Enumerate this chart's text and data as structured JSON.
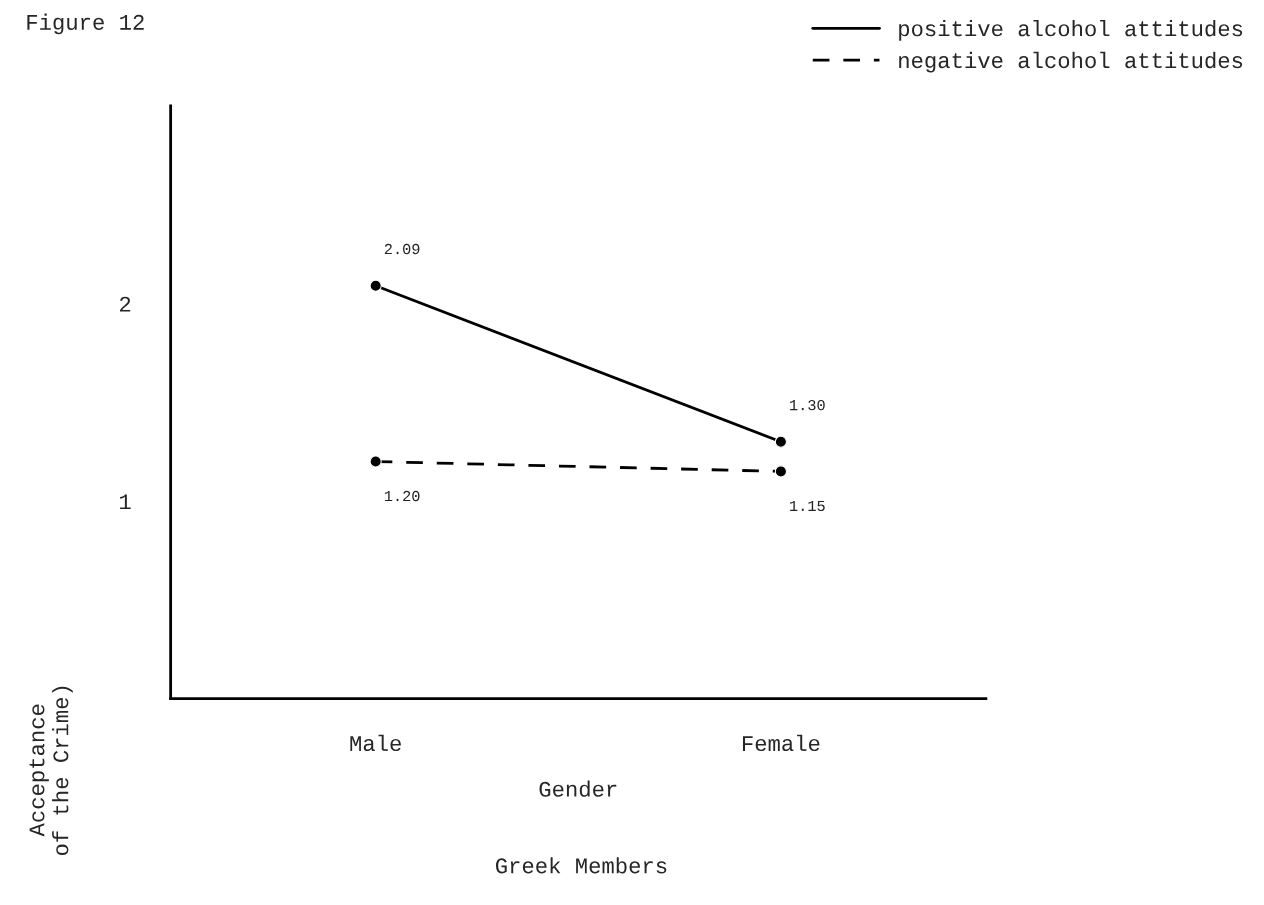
{
  "chart_data": {
    "type": "line",
    "title": "Figure 12",
    "xlabel": "Gender",
    "ylabel": "Acceptance\nof the Crime)",
    "annotations": [
      "Greek Members"
    ],
    "categories": [
      "Male",
      "Female"
    ],
    "series": [
      {
        "name": "positive alcohol attitudes",
        "color": "#000000",
        "values": [
          2.09,
          1.3
        ],
        "value_labels": [
          "2.09",
          "1.30"
        ],
        "line_style": "solid"
      },
      {
        "name": "negative alcohol attitudes",
        "color": "#000000",
        "values": [
          1.2,
          1.15
        ],
        "value_labels": [
          "1.20",
          "1.15"
        ],
        "line_style": "dashed"
      }
    ],
    "ylim": [
      0,
      3
    ],
    "yticks": [
      1,
      2
    ],
    "grid": false,
    "legend": "top right",
    "marker": "circle"
  }
}
